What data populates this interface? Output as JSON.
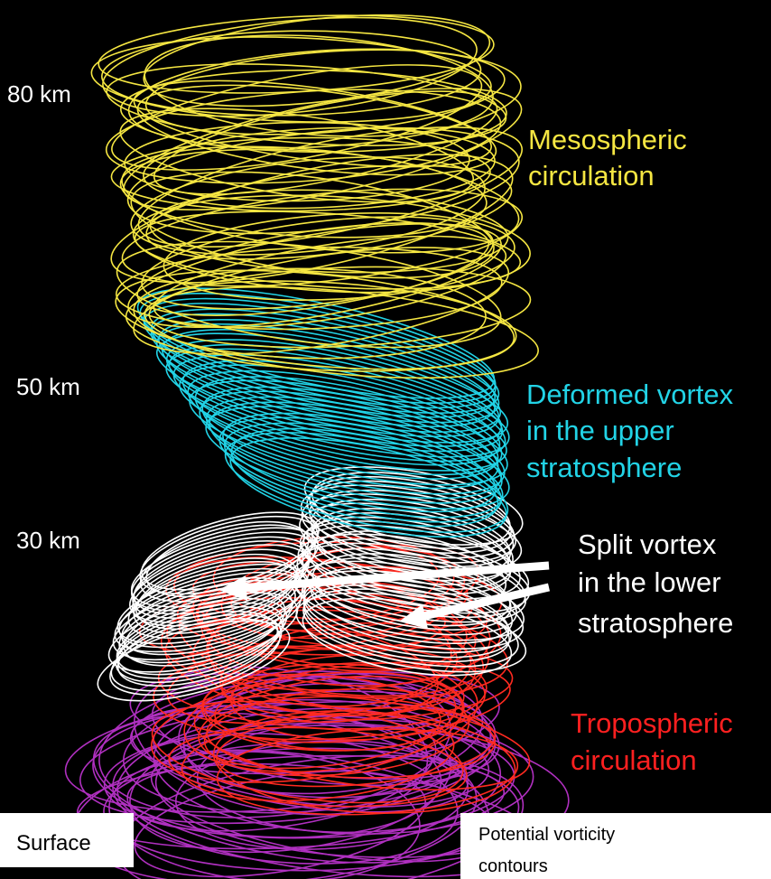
{
  "altitude_labels": [
    "80 km",
    "50 km",
    "30 km"
  ],
  "annotations": {
    "mesospheric": [
      "Mesospheric",
      "circulation"
    ],
    "upper": [
      "Deformed vortex",
      "in the upper",
      "stratosphere"
    ],
    "lower": [
      "Split vortex",
      "in the lower",
      "stratosphere"
    ],
    "tropospheric": [
      "Tropospheric",
      "circulation"
    ]
  },
  "surface_label": "Surface",
  "legend_note": [
    "Potential vorticity",
    "contours"
  ]
}
